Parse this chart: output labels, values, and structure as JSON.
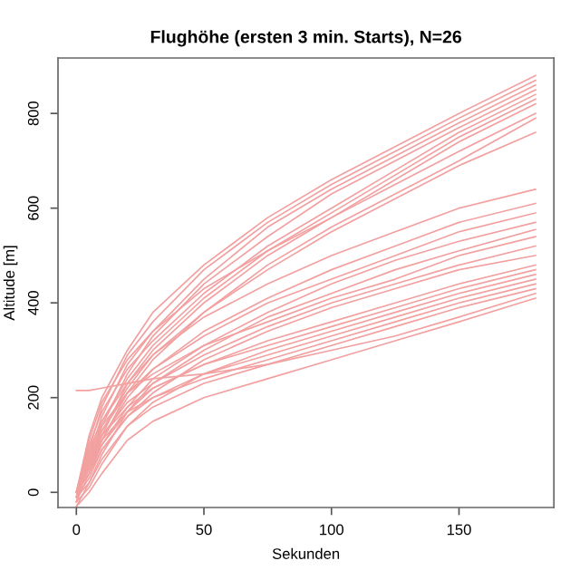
{
  "chart_data": {
    "type": "line",
    "title": "Flughöhe (ersten 3 min. Starts), N=26",
    "xlabel": "Sekunden",
    "ylabel": "Altitude [m]",
    "x": [
      0,
      5,
      10,
      20,
      30,
      50,
      75,
      100,
      125,
      150,
      180
    ],
    "xlim": [
      -7.2,
      187.2
    ],
    "xticks": [
      0,
      50,
      100,
      150
    ],
    "ylim": [
      -32,
      917
    ],
    "yticks": [
      0,
      200,
      400,
      600,
      800
    ],
    "grid": false,
    "marker": "none",
    "line_style": "solid",
    "series": [
      {
        "color": "#f2a0a0",
        "values": [
          0,
          120,
          200,
          300,
          380,
          480,
          580,
          660,
          730,
          800,
          880
        ]
      },
      {
        "color": "#f2a0a0",
        "values": [
          -10,
          90,
          180,
          290,
          360,
          470,
          570,
          650,
          720,
          790,
          870
        ]
      },
      {
        "color": "#f2a0a0",
        "values": [
          0,
          80,
          160,
          270,
          340,
          450,
          560,
          640,
          710,
          780,
          860
        ]
      },
      {
        "color": "#f2a0a0",
        "values": [
          -20,
          60,
          140,
          250,
          330,
          440,
          540,
          630,
          700,
          770,
          850
        ]
      },
      {
        "color": "#f2a0a0",
        "values": [
          0,
          100,
          170,
          260,
          320,
          420,
          520,
          600,
          680,
          760,
          840
        ]
      },
      {
        "color": "#f2a0a0",
        "values": [
          -10,
          70,
          150,
          240,
          310,
          410,
          510,
          590,
          670,
          750,
          830
        ]
      },
      {
        "color": "#f2a0a0",
        "values": [
          0,
          50,
          120,
          230,
          300,
          400,
          500,
          580,
          660,
          740,
          820
        ]
      },
      {
        "color": "#f2a0a0",
        "values": [
          0,
          110,
          190,
          280,
          340,
          430,
          510,
          580,
          650,
          720,
          800
        ]
      },
      {
        "color": "#f2a0a0",
        "values": [
          -20,
          40,
          110,
          210,
          280,
          380,
          480,
          560,
          630,
          700,
          790
        ]
      },
      {
        "color": "#f2a0a0",
        "values": [
          0,
          60,
          130,
          220,
          290,
          380,
          470,
          550,
          620,
          690,
          760
        ]
      },
      {
        "color": "#f2a0a0",
        "values": [
          0,
          90,
          150,
          230,
          290,
          370,
          440,
          500,
          550,
          600,
          640
        ]
      },
      {
        "color": "#f2a0a0",
        "values": [
          -10,
          50,
          110,
          200,
          260,
          340,
          410,
          470,
          520,
          570,
          610
        ]
      },
      {
        "color": "#f2a0a0",
        "values": [
          0,
          70,
          130,
          210,
          260,
          330,
          400,
          450,
          500,
          550,
          590
        ]
      },
      {
        "color": "#f2a0a0",
        "values": [
          0,
          40,
          100,
          180,
          240,
          310,
          380,
          440,
          490,
          530,
          570
        ]
      },
      {
        "color": "#f2a0a0",
        "values": [
          -30,
          20,
          80,
          170,
          230,
          300,
          370,
          420,
          470,
          510,
          555
        ]
      },
      {
        "color": "#f2a0a0",
        "values": [
          0,
          80,
          140,
          210,
          250,
          310,
          360,
          410,
          450,
          500,
          540
        ]
      },
      {
        "color": "#f2a0a0",
        "values": [
          0,
          60,
          120,
          190,
          230,
          290,
          350,
          400,
          440,
          480,
          520
        ]
      },
      {
        "color": "#f2a0a0",
        "values": [
          -10,
          30,
          90,
          160,
          210,
          280,
          340,
          390,
          430,
          470,
          500
        ]
      },
      {
        "color": "#f2a0a0",
        "values": [
          0,
          50,
          100,
          170,
          220,
          270,
          320,
          360,
          400,
          440,
          480
        ]
      },
      {
        "color": "#f2a0a0",
        "values": [
          0,
          70,
          120,
          180,
          220,
          270,
          310,
          350,
          390,
          430,
          470
        ]
      },
      {
        "color": "#f2a0a0",
        "values": [
          -20,
          10,
          60,
          140,
          190,
          250,
          300,
          340,
          380,
          420,
          460
        ]
      },
      {
        "color": "#f2a0a0",
        "values": [
          0,
          40,
          90,
          160,
          200,
          250,
          290,
          330,
          370,
          410,
          450
        ]
      },
      {
        "color": "#f2a0a0",
        "values": [
          0,
          60,
          110,
          170,
          200,
          240,
          280,
          320,
          360,
          400,
          440
        ]
      },
      {
        "color": "#f2a0a0",
        "values": [
          -10,
          20,
          70,
          140,
          180,
          230,
          270,
          310,
          350,
          390,
          430
        ]
      },
      {
        "color": "#f2a0a0",
        "values": [
          215,
          215,
          220,
          230,
          240,
          250,
          270,
          300,
          330,
          370,
          420
        ]
      },
      {
        "color": "#f2a0a0",
        "values": [
          -30,
          0,
          40,
          110,
          150,
          200,
          240,
          280,
          320,
          360,
          410
        ]
      }
    ]
  }
}
